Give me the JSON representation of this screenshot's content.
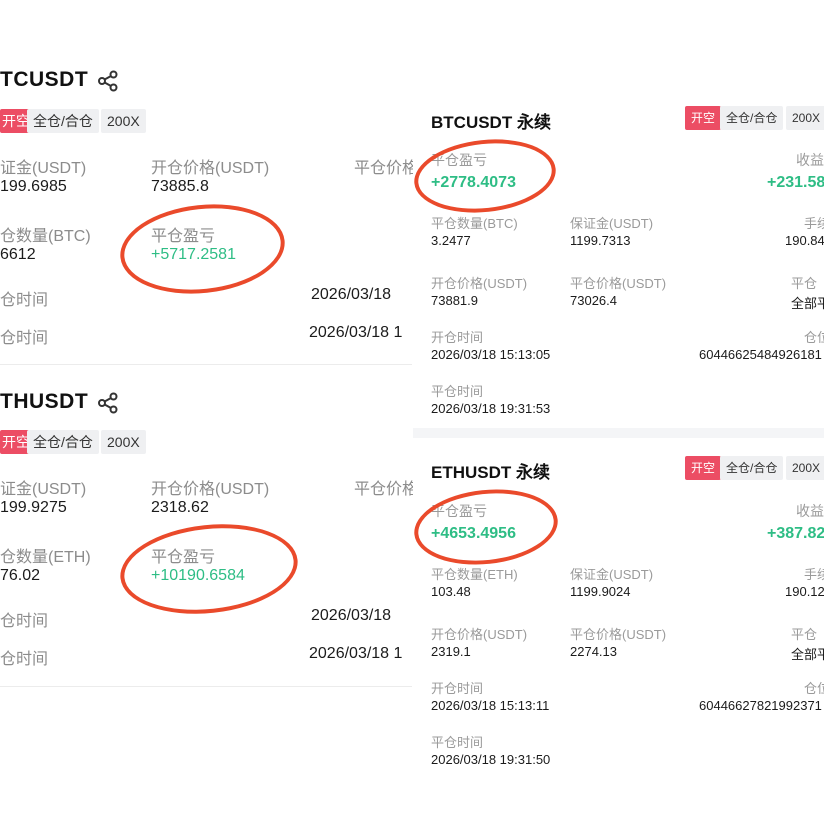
{
  "left": {
    "btc": {
      "title": "TCUSDT",
      "tag_side": "开空",
      "tag_mode": "全仓/合仓",
      "tag_lev": "200X",
      "margin_label": "证金(USDT)",
      "margin_value": "199.6985",
      "open_price_label": "开仓价格(USDT)",
      "open_price_value": "73885.8",
      "close_price_label": "平仓价格",
      "qty_label": "仓数量(BTC)",
      "qty_value": "6612",
      "pnl_label": "平仓盈亏",
      "pnl_value": "+5717.2581",
      "open_time_label": "仓时间",
      "open_time_value": "2026/03/18",
      "close_time_label": "仓时间",
      "close_time_value": "2026/03/18 1"
    },
    "eth": {
      "title": "THUSDT",
      "tag_side": "开空",
      "tag_mode": "全仓/合仓",
      "tag_lev": "200X",
      "margin_label": "证金(USDT)",
      "margin_value": "199.9275",
      "open_price_label": "开仓价格(USDT)",
      "open_price_value": "2318.62",
      "close_price_label": "平仓价格",
      "qty_label": "仓数量(ETH)",
      "qty_value": "76.02",
      "pnl_label": "平仓盈亏",
      "pnl_value": "+10190.6584",
      "open_time_label": "仓时间",
      "open_time_value": "2026/03/18",
      "close_time_label": "仓时间",
      "close_time_value": "2026/03/18 1"
    }
  },
  "right": {
    "btc": {
      "title": "BTCUSDT 永续",
      "tag_side": "开空",
      "tag_mode": "全仓/合仓",
      "tag_lev": "200X",
      "pnl_label": "平仓盈亏",
      "pnl_value": "+2778.4073",
      "yield_label": "收益",
      "yield_value": "+231.58",
      "qty_label": "平仓数量(BTC)",
      "qty_value": "3.2477",
      "margin_label": "保证金(USDT)",
      "margin_value": "1199.7313",
      "fee_label": "手续",
      "fee_value": "190.84",
      "open_price_label": "开仓价格(USDT)",
      "open_price_value": "73881.9",
      "close_price_label": "平仓价格(USDT)",
      "close_price_value": "73026.4",
      "close_type_label": "平仓",
      "close_type_value": "全部平",
      "open_time_label": "开仓时间",
      "open_time_value": "2026/03/18 15:13:05",
      "position_label": "仓位",
      "position_value": "60446625484926181",
      "close_time_label": "平仓时间",
      "close_time_value": "2026/03/18 19:31:53"
    },
    "eth": {
      "title": "ETHUSDT 永续",
      "tag_side": "开空",
      "tag_mode": "全仓/合仓",
      "tag_lev": "200X",
      "pnl_label": "平仓盈亏",
      "pnl_value": "+4653.4956",
      "yield_label": "收益",
      "yield_value": "+387.82",
      "qty_label": "平仓数量(ETH)",
      "qty_value": "103.48",
      "margin_label": "保证金(USDT)",
      "margin_value": "1199.9024",
      "fee_label": "手续",
      "fee_value": "190.12",
      "open_price_label": "开仓价格(USDT)",
      "open_price_value": "2319.1",
      "close_price_label": "平仓价格(USDT)",
      "close_price_value": "2274.13",
      "close_type_label": "平仓",
      "close_type_value": "全部平",
      "open_time_label": "开仓时间",
      "open_time_value": "2026/03/18 15:13:11",
      "position_label": "仓位",
      "position_value": "60446627821992371",
      "close_time_label": "平仓时间",
      "close_time_value": "2026/03/18 19:31:50"
    }
  },
  "colors": {
    "accent_red": "#ec4d64",
    "profit_green": "#2ebd85",
    "annotation_red": "#ea4a2b"
  },
  "icons": [
    "share-icon"
  ]
}
